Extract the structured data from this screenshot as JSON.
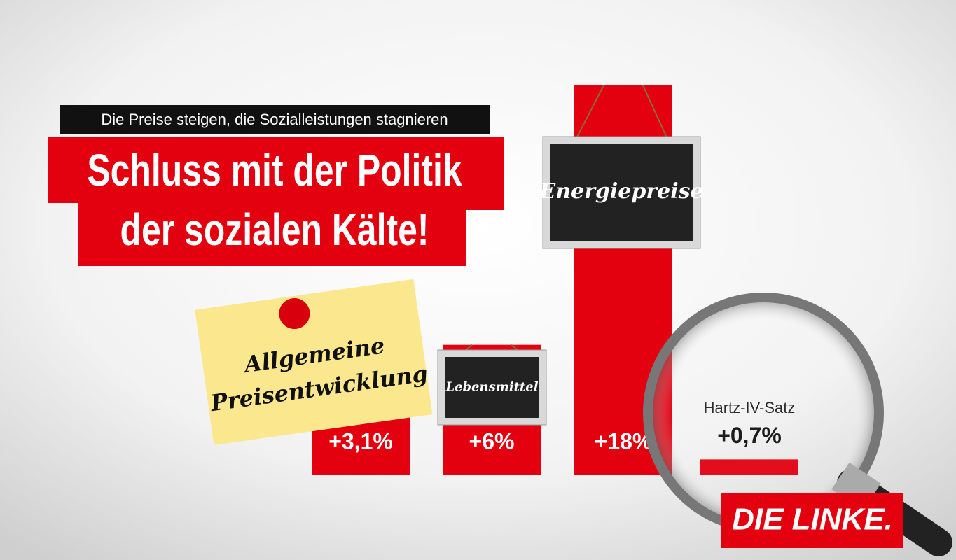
{
  "chart_data": {
    "type": "bar",
    "subtitle": "Die Preise steigen, die Sozialleistungen stagnieren",
    "title_lines": [
      "Schluss mit der Politik",
      "der sozialen Kälte!"
    ],
    "categories": [
      "Allgemeine Preisentwicklung",
      "Lebensmittel",
      "Energiepreise",
      "Hartz-IV-Satz"
    ],
    "values": [
      3.1,
      6,
      18,
      0.7
    ],
    "value_labels": [
      "+3,1%",
      "+6%",
      "+18%",
      "+0,7%"
    ],
    "color": "#e3000f",
    "logo": "DIE LINKE."
  }
}
